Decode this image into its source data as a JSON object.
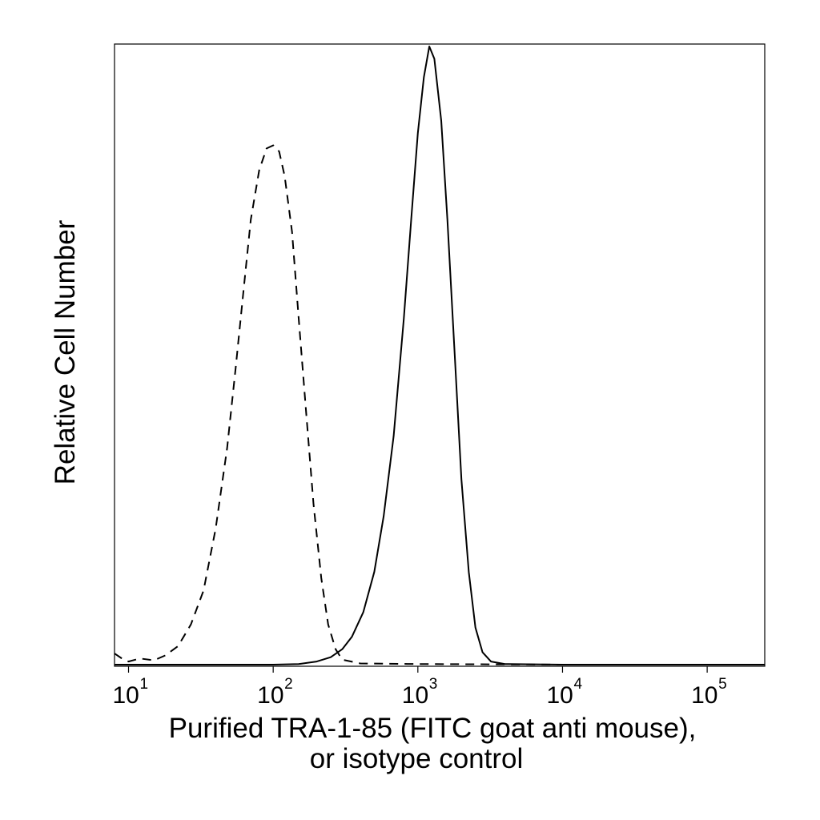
{
  "chart_data": {
    "type": "line",
    "xlabel_line1": "Purified TRA-1-85 (FITC goat anti mouse),",
    "xlabel_line2": "or isotype control",
    "ylabel": "Relative Cell Number",
    "x_scale": "log",
    "xlim": [
      8,
      250000
    ],
    "ylim": [
      0,
      100
    ],
    "grid": false,
    "x_ticks": [
      {
        "value": 10,
        "base": "10",
        "exp": "1"
      },
      {
        "value": 100,
        "base": "10",
        "exp": "2"
      },
      {
        "value": 1000,
        "base": "10",
        "exp": "3"
      },
      {
        "value": 10000,
        "base": "10",
        "exp": "4"
      },
      {
        "value": 100000,
        "base": "10",
        "exp": "5"
      }
    ],
    "series": [
      {
        "style": "dashed",
        "x": [
          8,
          9,
          10,
          12,
          15,
          18,
          22,
          27,
          33,
          40,
          48,
          55,
          62,
          70,
          80,
          90,
          100,
          110,
          120,
          135,
          150,
          170,
          190,
          215,
          240,
          270,
          300,
          400,
          1000,
          10000,
          250000
        ],
        "y": [
          1.8,
          1.0,
          0.5,
          1.0,
          0.7,
          1.5,
          3.0,
          6.5,
          12.0,
          22.0,
          35.0,
          48.0,
          60.0,
          72.0,
          80.0,
          83.5,
          84.0,
          83.0,
          79.0,
          70.0,
          56.0,
          40.0,
          26.0,
          14.0,
          6.5,
          2.5,
          0.8,
          0.2,
          0.1,
          0.0,
          0.0
        ]
      },
      {
        "style": "solid",
        "x": [
          8,
          100,
          150,
          200,
          250,
          300,
          350,
          420,
          500,
          580,
          680,
          800,
          900,
          1000,
          1100,
          1200,
          1300,
          1450,
          1600,
          1800,
          2000,
          2250,
          2500,
          2800,
          3200,
          4000,
          10000,
          250000
        ],
        "y": [
          0,
          0,
          0.1,
          0.5,
          1.2,
          2.5,
          4.5,
          8.5,
          15.0,
          24.0,
          37.0,
          56.0,
          72.0,
          86.0,
          95.0,
          100.0,
          98.0,
          88.0,
          72.0,
          50.0,
          30.0,
          15.0,
          6.0,
          2.0,
          0.5,
          0.1,
          0.0,
          0.0
        ]
      }
    ]
  }
}
